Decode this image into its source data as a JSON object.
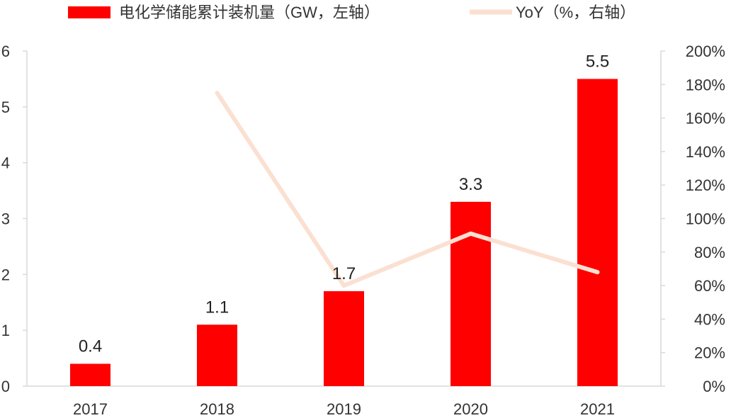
{
  "chart_data": {
    "type": "bar",
    "categories": [
      "2017",
      "2018",
      "2019",
      "2020",
      "2021"
    ],
    "series": [
      {
        "name": "电化学储能累计装机量（GW，左轴）",
        "type": "bar",
        "axis": "left",
        "values": [
          0.4,
          1.1,
          1.7,
          3.3,
          5.5
        ],
        "labels": [
          "0.4",
          "1.1",
          "1.7",
          "3.3",
          "5.5"
        ],
        "color": "#ff0000"
      },
      {
        "name": "YoY（%，右轴）",
        "type": "line",
        "axis": "right",
        "values": [
          null,
          175,
          60,
          91,
          68
        ],
        "color": "#fbe0d2"
      }
    ],
    "y_left": {
      "min": 0,
      "max": 6,
      "ticks": [
        "0",
        "1",
        "2",
        "3",
        "4",
        "5",
        "6"
      ]
    },
    "y_right": {
      "min": 0,
      "max": 200,
      "ticks": [
        "0%",
        "20%",
        "40%",
        "60%",
        "80%",
        "100%",
        "120%",
        "140%",
        "160%",
        "180%",
        "200%"
      ]
    },
    "grid": false,
    "legend_position": "top"
  }
}
